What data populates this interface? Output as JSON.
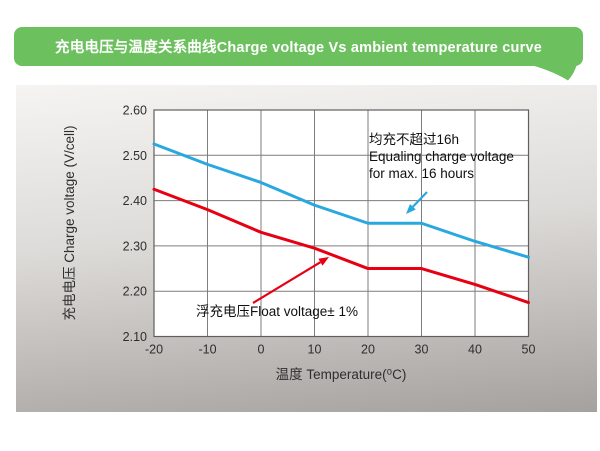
{
  "banner": {
    "title": "充电电压与温度关系曲线Charge voltage Vs ambient temperature curve",
    "color": "#6cc05e"
  },
  "chart_data": {
    "type": "line",
    "title": "充电电压与温度关系曲线Charge voltage Vs ambient temperature curve",
    "xlabel": "温度 Temperature(⁰C)",
    "ylabel": "充电电压 Charge voltage (V/cell)",
    "x": [
      -20,
      -10,
      0,
      10,
      20,
      30,
      40,
      50
    ],
    "xlim": [
      -20,
      50
    ],
    "ylim": [
      2.1,
      2.6
    ],
    "x_ticks": [
      "-20",
      "-10",
      "0",
      "10",
      "20",
      "30",
      "40",
      "50"
    ],
    "y_ticks": [
      "2.10",
      "2.20",
      "2.30",
      "2.40",
      "2.50",
      "2.60"
    ],
    "grid": true,
    "series": [
      {
        "name": "Equalizing charge voltage",
        "color": "#29a8e0",
        "values": [
          2.525,
          2.48,
          2.44,
          2.39,
          2.35,
          2.35,
          2.31,
          2.275
        ]
      },
      {
        "name": "Float voltage",
        "color": "#e60012",
        "values": [
          2.425,
          2.38,
          2.33,
          2.295,
          2.25,
          2.25,
          2.215,
          2.175
        ]
      }
    ],
    "annotations": [
      {
        "line1": "均充不超过16h",
        "line2": "Equaling charge voltage",
        "line3": "for max. 16 hours"
      },
      {
        "line1": "浮充电压Float voltage± 1%"
      }
    ]
  },
  "colors": {
    "grid": "#7d7d7d",
    "plot_border": "#5f5f5f",
    "axis_text": "#2e2e2e"
  }
}
